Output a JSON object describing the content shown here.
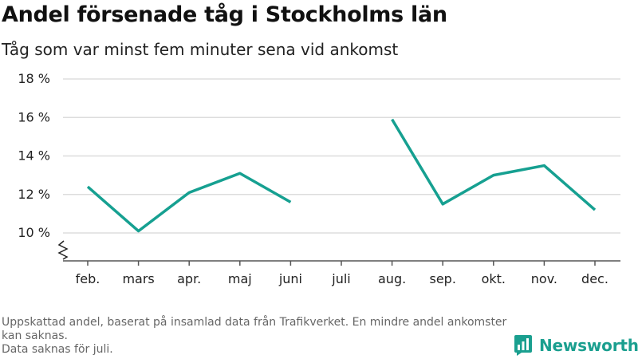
{
  "title": "Andel försenade tåg i Stockholms län",
  "subtitle": "Tåg som var minst fem minuter sena vid ankomst",
  "footer": {
    "note1": "Uppskattad andel, baserat på insamlad data från Trafikverket. En mindre andel ankomster kan saknas.",
    "note2": "Data saknas för juli."
  },
  "logo": {
    "text": "Newsworthy",
    "icon": "bar-chart-logo-icon"
  },
  "colors": {
    "line": "#16a091",
    "grid": "#dddddd",
    "axis": "#555555",
    "brand": "#1a9f8f"
  },
  "chart_data": {
    "type": "line",
    "categories": [
      "feb.",
      "mars",
      "apr.",
      "maj",
      "juni",
      "juli",
      "aug.",
      "sep.",
      "okt.",
      "nov.",
      "dec."
    ],
    "series": [
      {
        "values": [
          12.4,
          10.1,
          12.1,
          13.1,
          11.6,
          null,
          15.9,
          11.5,
          13.0,
          13.5,
          11.2
        ]
      }
    ],
    "ylim": [
      10,
      18
    ],
    "yticks": [
      10,
      12,
      14,
      16,
      18
    ],
    "ytick_labels": [
      "10 %",
      "12 %",
      "14 %",
      "16 %",
      "18 %"
    ],
    "y_axis_break": true,
    "grid": true,
    "xlabel": "",
    "ylabel": ""
  }
}
